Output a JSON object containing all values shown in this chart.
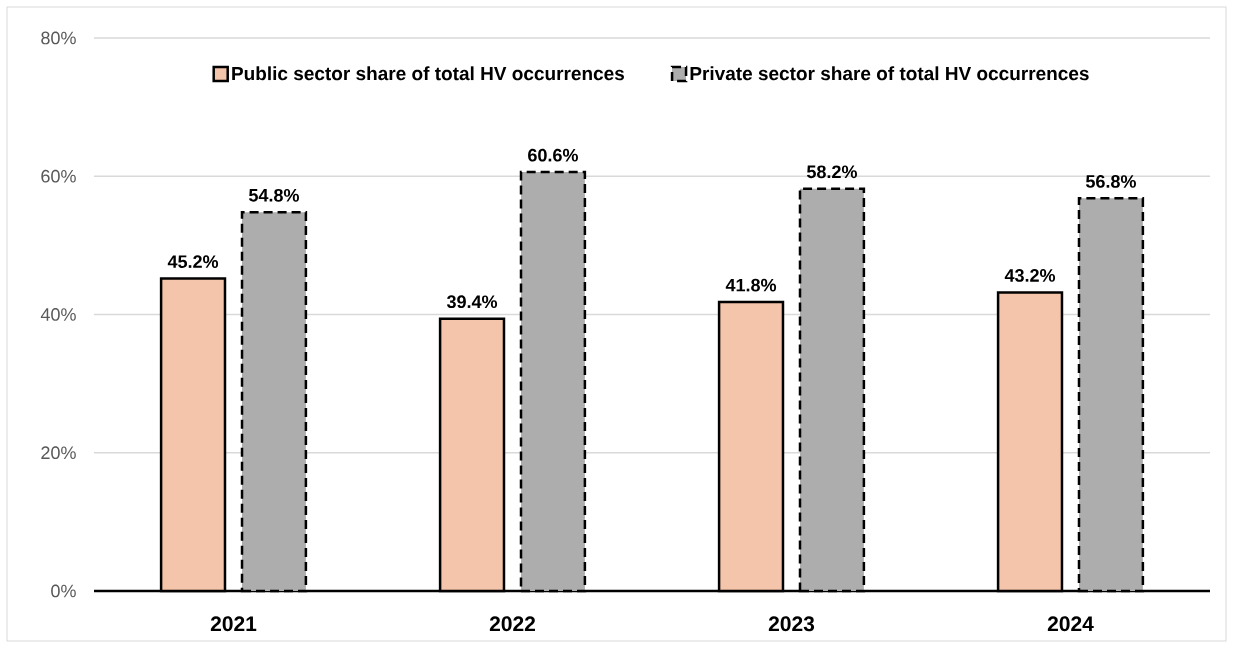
{
  "chart_data": {
    "type": "bar",
    "categories": [
      "2021",
      "2022",
      "2023",
      "2024"
    ],
    "series": [
      {
        "name": "Public sector share of total HV occurrences",
        "color": "#f4c5aa",
        "line_style": "solid",
        "values": [
          45.2,
          39.4,
          41.8,
          43.2
        ],
        "value_labels": [
          "45.2%",
          "39.4%",
          "41.8%",
          "43.2%"
        ]
      },
      {
        "name": "Private sector share of total HV occurrences",
        "color": "#adadad",
        "line_style": "dashed",
        "values": [
          54.8,
          60.6,
          58.2,
          56.8
        ],
        "value_labels": [
          "54.8%",
          "60.6%",
          "58.2%",
          "56.8%"
        ]
      }
    ],
    "ylim": [
      0,
      80
    ],
    "yticks": [
      {
        "value": 0,
        "label": "0%"
      },
      {
        "value": 20,
        "label": "20%"
      },
      {
        "value": 40,
        "label": "40%"
      },
      {
        "value": 60,
        "label": "60%"
      },
      {
        "value": 80,
        "label": "80%"
      }
    ],
    "grid": "y",
    "legend": "top"
  }
}
